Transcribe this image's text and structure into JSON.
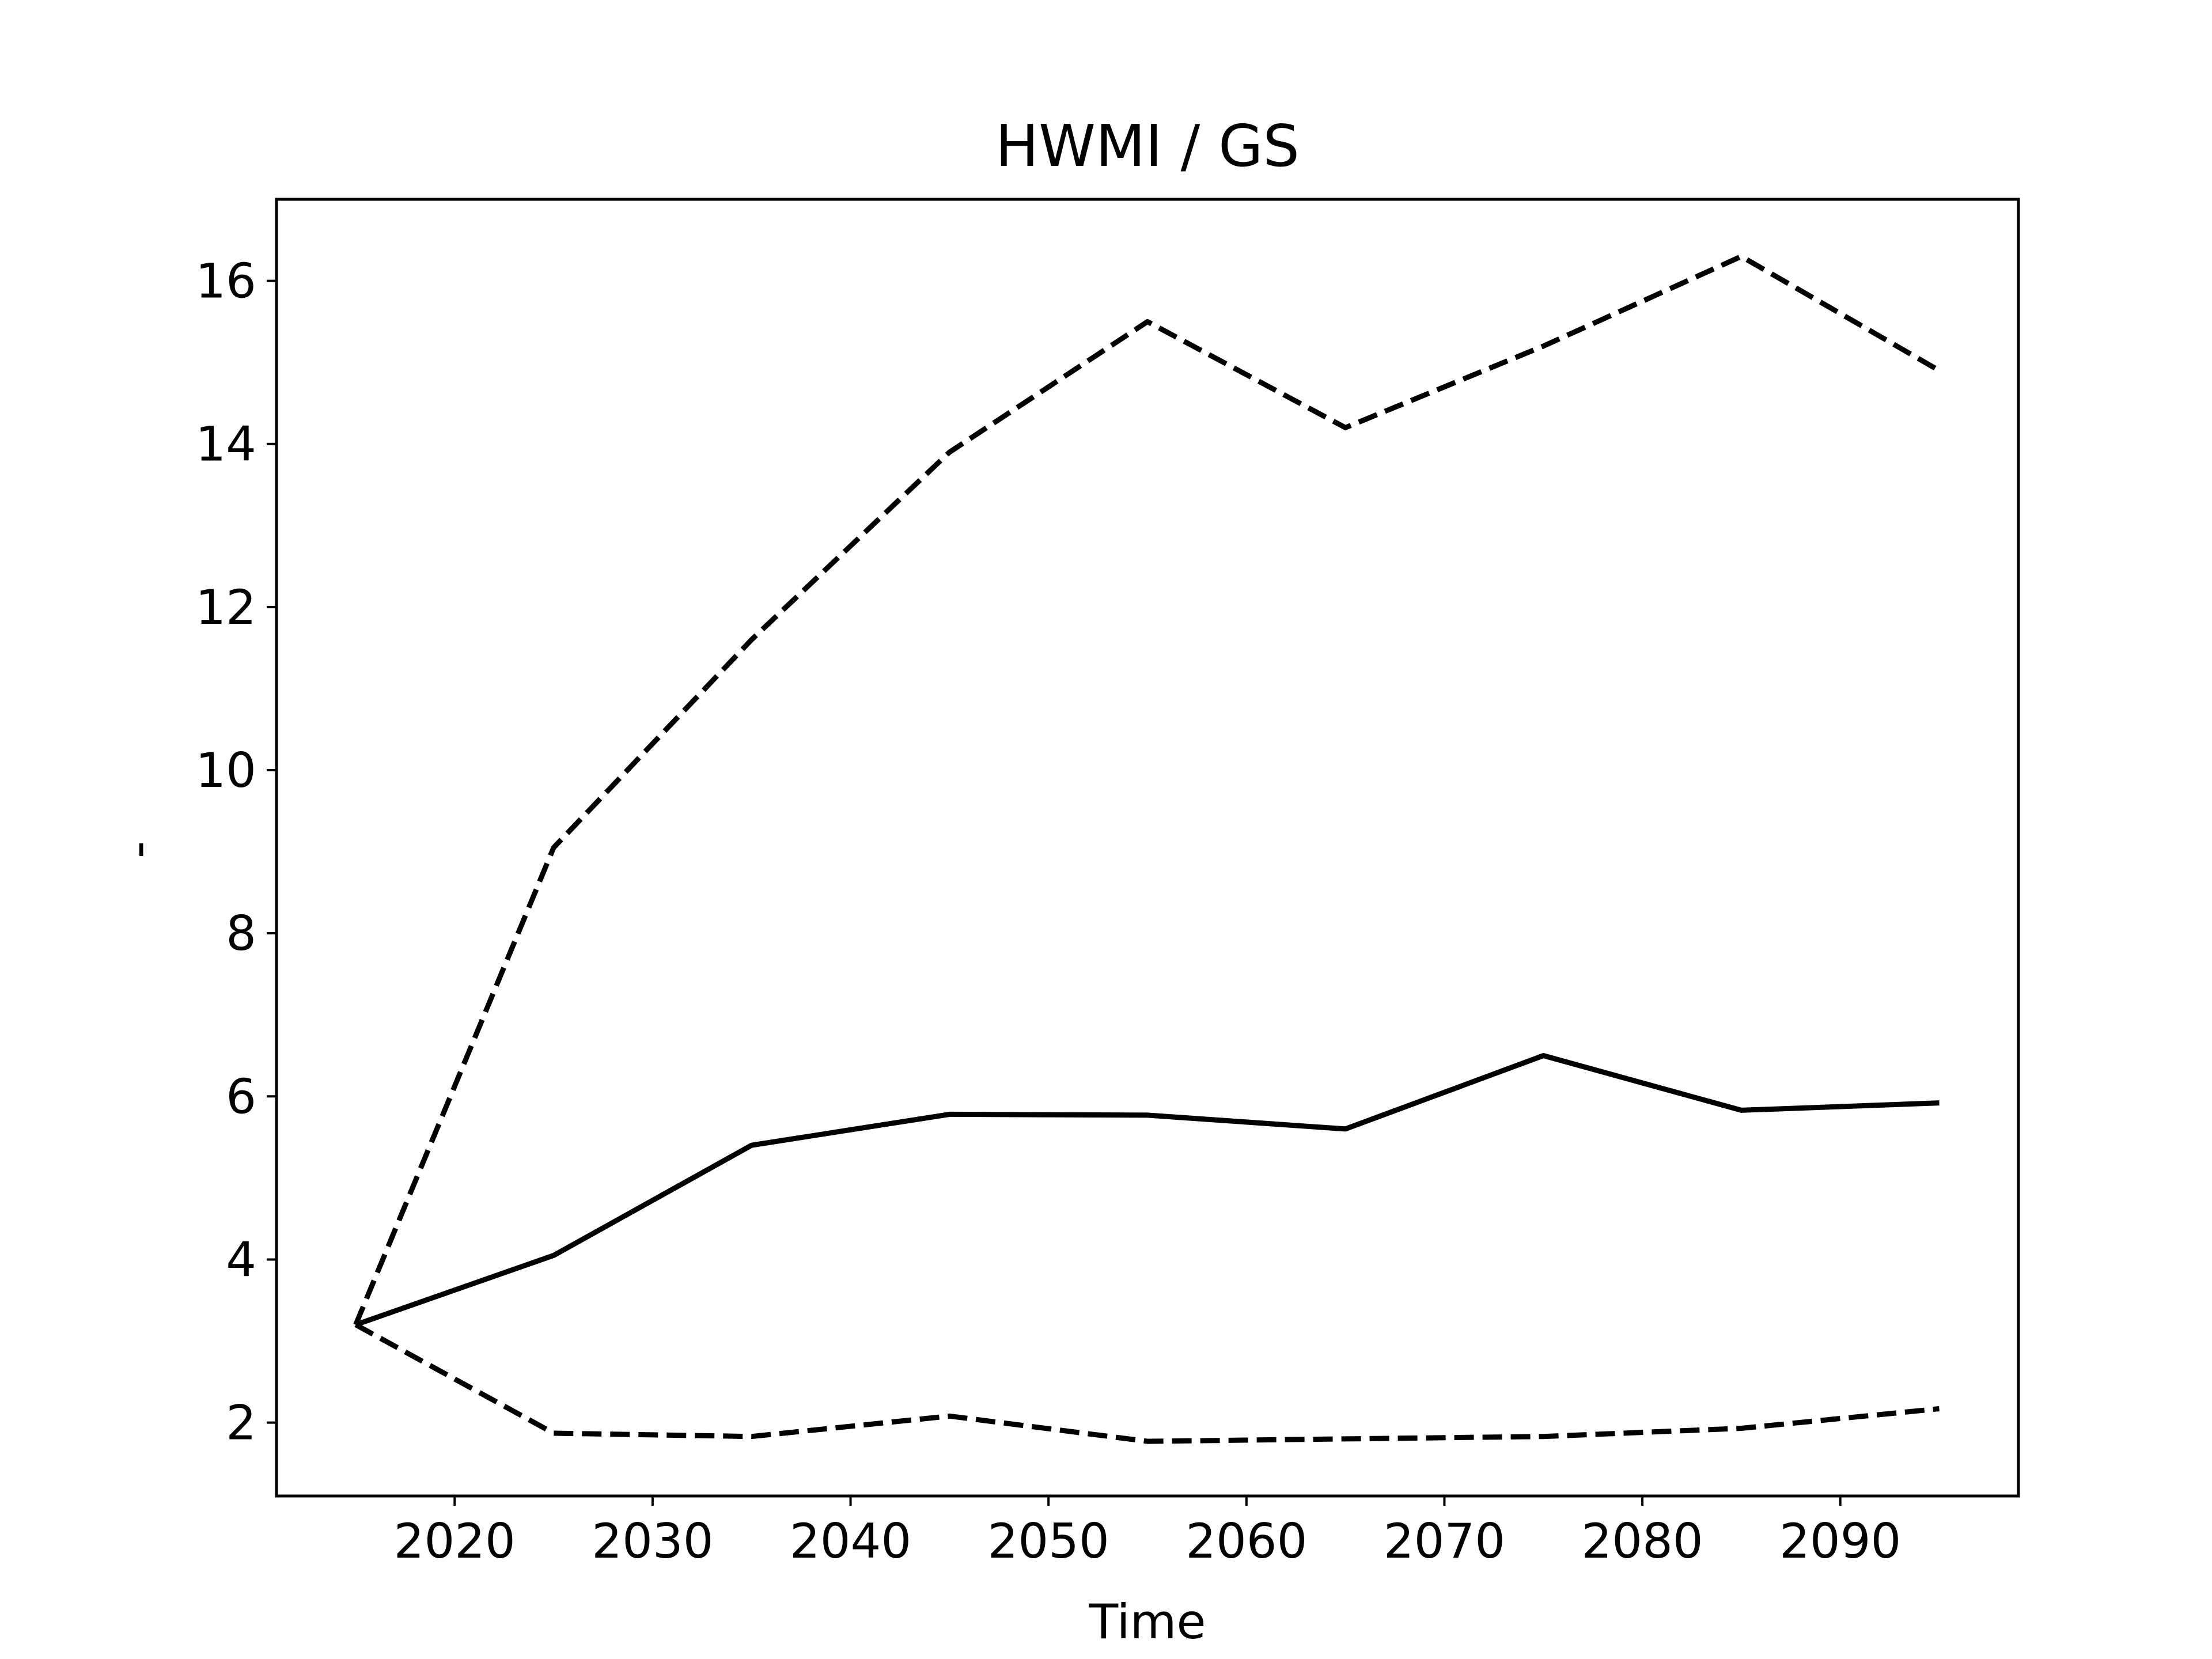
{
  "chart_data": {
    "type": "line",
    "title": "HWMI / GS",
    "xlabel": "Time",
    "ylabel": "-",
    "x": [
      2015,
      2025,
      2035,
      2045,
      2055,
      2065,
      2075,
      2085,
      2095
    ],
    "xlim": [
      2011,
      2099
    ],
    "ylim": [
      1.1,
      17.0
    ],
    "xticks": [
      2020,
      2030,
      2040,
      2050,
      2060,
      2070,
      2080,
      2090
    ],
    "yticks": [
      2,
      4,
      6,
      8,
      10,
      12,
      14,
      16
    ],
    "grid": false,
    "series": [
      {
        "style": "dashed",
        "color": "#000000",
        "values": [
          3.2,
          9.05,
          11.6,
          13.9,
          15.5,
          14.2,
          15.2,
          16.3,
          14.9
        ]
      },
      {
        "style": "solid",
        "color": "#000000",
        "values": [
          3.2,
          4.05,
          5.4,
          5.78,
          5.77,
          5.6,
          6.5,
          5.83,
          5.92
        ]
      },
      {
        "style": "dashed",
        "color": "#000000",
        "values": [
          3.2,
          1.87,
          1.83,
          2.08,
          1.77,
          1.8,
          1.83,
          1.93,
          2.17
        ]
      }
    ]
  }
}
